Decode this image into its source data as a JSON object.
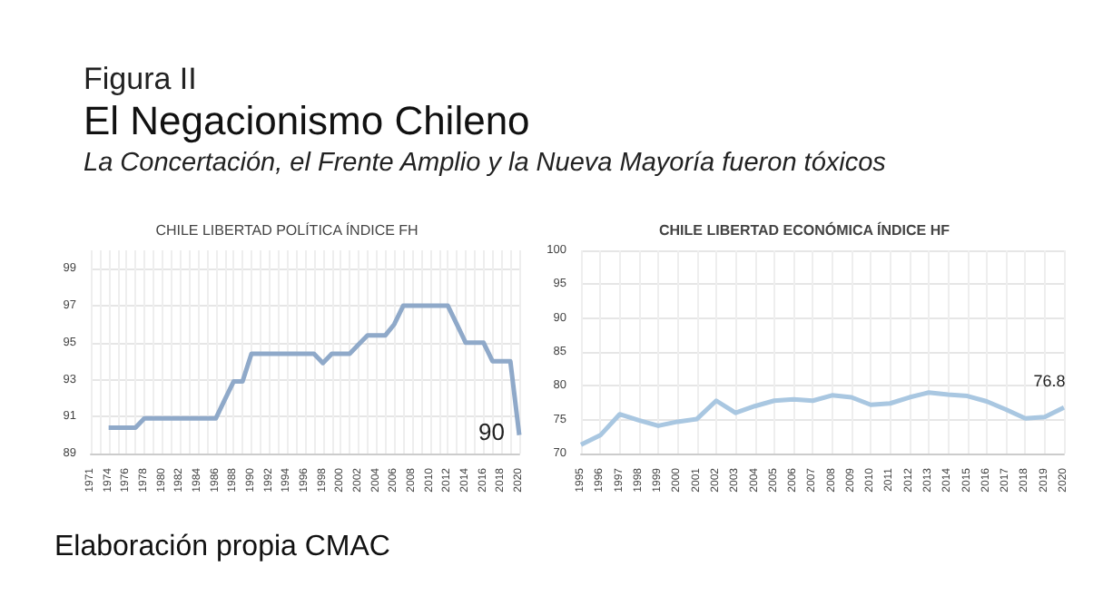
{
  "chart_data": [
    {
      "type": "other",
      "title": "El Negacionismo Chileno",
      "subtitle": "La Concertación, el Frente Amplio y la Nueva Mayoría fueron tóxicos",
      "annotations": [
        "Figura II",
        "Elaboración propia CMAC"
      ]
    },
    {
      "type": "line",
      "title": "CHILE LIBERTAD POLÍTICA ÍNDICE FH",
      "categories": [
        "1971",
        null,
        "1974",
        null,
        "1976",
        null,
        "1978",
        null,
        "1980",
        null,
        "1982",
        null,
        "1984",
        null,
        "1986",
        null,
        "1988",
        null,
        "1990",
        null,
        "1992",
        null,
        "1994",
        null,
        "1996",
        null,
        "1998",
        null,
        "2000",
        null,
        "2002",
        null,
        "2004",
        null,
        "2006",
        null,
        "2008",
        null,
        "2010",
        null,
        "2012",
        null,
        "2014",
        null,
        "2016",
        null,
        "2018",
        null,
        "2020"
      ],
      "series": [
        {
          "color": "#8fa9c9",
          "values": [
            null,
            null,
            90.4,
            90.4,
            90.4,
            90.4,
            90.9,
            90.9,
            90.9,
            90.9,
            90.9,
            90.9,
            90.9,
            90.9,
            90.9,
            91.9,
            92.9,
            92.9,
            94.4,
            94.4,
            94.4,
            94.4,
            94.4,
            94.4,
            94.4,
            94.4,
            93.9,
            94.4,
            94.4,
            94.4,
            94.9,
            95.4,
            95.4,
            95.4,
            96.0,
            97.0,
            97.0,
            97.0,
            97.0,
            97.0,
            97.0,
            96.0,
            95.0,
            95.0,
            95.0,
            94.0,
            94.0,
            94.0,
            90
          ]
        }
      ],
      "ylim": [
        89,
        100
      ],
      "yticks": [
        89,
        91,
        93,
        95,
        97,
        99
      ],
      "grid": true,
      "marker": "none",
      "annotations": [
        {
          "text": "90",
          "x": "2020",
          "y": 90
        }
      ]
    },
    {
      "type": "line",
      "title": "CHILE LIBERTAD ECONÓMICA ÍNDICE HF",
      "categories": [
        "1995",
        "1996",
        "1997",
        "1998",
        "1999",
        "2000",
        "2001",
        "2002",
        "2003",
        "2004",
        "2005",
        "2006",
        "2007",
        "2008",
        "2009",
        "2010",
        "2011",
        "2012",
        "2013",
        "2014",
        "2015",
        "2016",
        "2017",
        "2018",
        "2019",
        "2020"
      ],
      "series": [
        {
          "color": "#a9c7e1",
          "values": [
            71.3,
            72.7,
            75.8,
            74.9,
            74.1,
            74.7,
            75.1,
            77.8,
            76.0,
            77.0,
            77.8,
            78.0,
            77.8,
            78.6,
            78.3,
            77.2,
            77.4,
            78.3,
            79.0,
            78.7,
            78.5,
            77.7,
            76.5,
            75.2,
            75.4,
            76.8
          ]
        }
      ],
      "ylim": [
        70,
        100
      ],
      "yticks": [
        70,
        75,
        80,
        85,
        90,
        95,
        100
      ],
      "grid": true,
      "marker": "none",
      "annotations": [
        {
          "text": "76.8",
          "x": "2020",
          "y": 76.8
        }
      ]
    }
  ]
}
